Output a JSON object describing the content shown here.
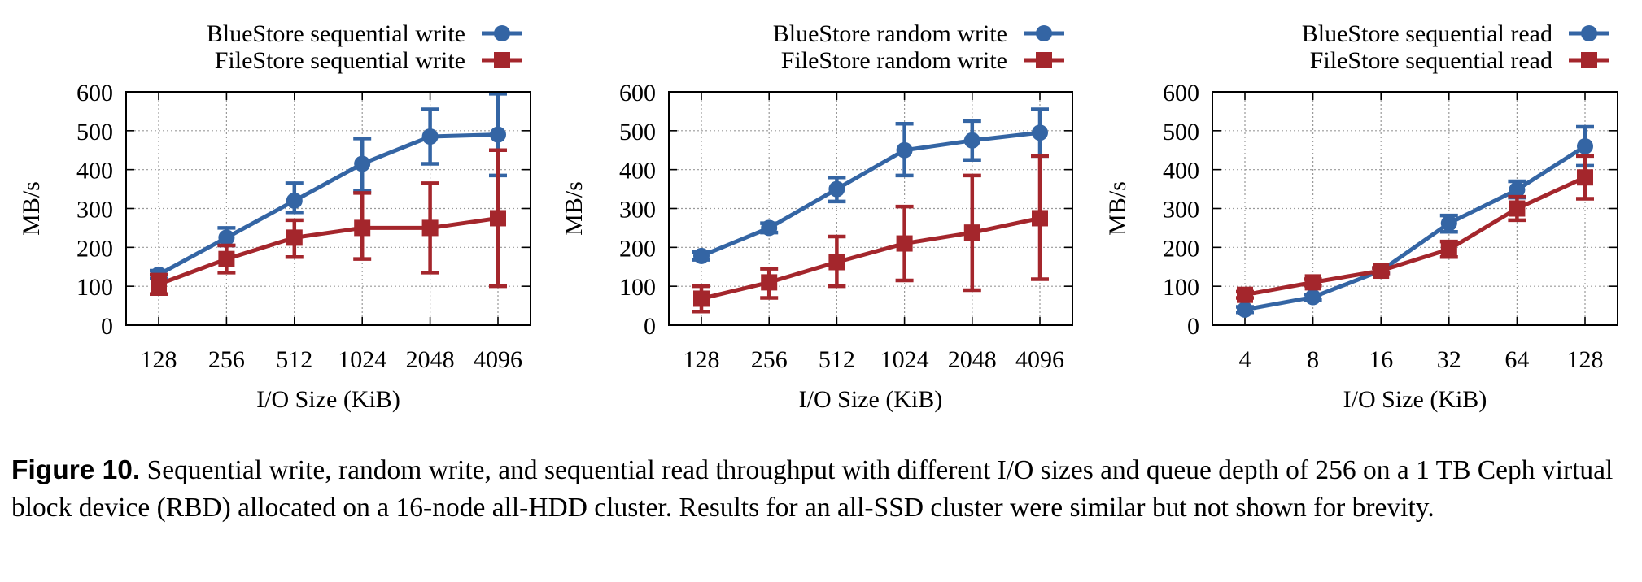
{
  "chart_data": [
    {
      "type": "line",
      "categories": [
        "128",
        "256",
        "512",
        "1024",
        "2048",
        "4096"
      ],
      "xlabel": "I/O Size (KiB)",
      "ylabel": "MB/s",
      "ylim": [
        0,
        600
      ],
      "yticks": [
        "0",
        "100",
        "200",
        "300",
        "400",
        "500",
        "600"
      ],
      "grid": true,
      "error_bars": true,
      "legend_position": "top-right, above plot",
      "series": [
        {
          "name": "BlueStore sequential write",
          "color": "#3465a4",
          "marker": "circle",
          "values": [
            130,
            225,
            320,
            415,
            485,
            490
          ],
          "err_low": [
            120,
            205,
            290,
            345,
            415,
            385
          ],
          "err_high": [
            140,
            250,
            365,
            480,
            555,
            595
          ]
        },
        {
          "name": "FileStore sequential write",
          "color": "#a4262c",
          "marker": "square",
          "values": [
            105,
            170,
            225,
            250,
            250,
            275
          ],
          "err_low": [
            80,
            135,
            175,
            170,
            135,
            100
          ],
          "err_high": [
            130,
            205,
            270,
            340,
            365,
            450
          ]
        }
      ]
    },
    {
      "type": "line",
      "categories": [
        "128",
        "256",
        "512",
        "1024",
        "2048",
        "4096"
      ],
      "xlabel": "I/O Size (KiB)",
      "ylabel": "MB/s",
      "ylim": [
        0,
        600
      ],
      "yticks": [
        "0",
        "100",
        "200",
        "300",
        "400",
        "500",
        "600"
      ],
      "grid": true,
      "error_bars": true,
      "legend_position": "top-right, above plot",
      "series": [
        {
          "name": "BlueStore random write",
          "color": "#3465a4",
          "marker": "circle",
          "values": [
            178,
            250,
            350,
            450,
            475,
            495
          ],
          "err_low": [
            168,
            238,
            318,
            385,
            425,
            435
          ],
          "err_high": [
            188,
            262,
            380,
            518,
            525,
            555
          ]
        },
        {
          "name": "FileStore random write",
          "color": "#a4262c",
          "marker": "square",
          "values": [
            68,
            110,
            162,
            210,
            238,
            275
          ],
          "err_low": [
            35,
            70,
            100,
            115,
            90,
            118
          ],
          "err_high": [
            100,
            145,
            228,
            305,
            385,
            435
          ]
        }
      ]
    },
    {
      "type": "line",
      "categories": [
        "4",
        "8",
        "16",
        "32",
        "64",
        "128"
      ],
      "xlabel": "I/O Size (KiB)",
      "ylabel": "MB/s",
      "ylim": [
        0,
        600
      ],
      "yticks": [
        "0",
        "100",
        "200",
        "300",
        "400",
        "500",
        "600"
      ],
      "grid": true,
      "error_bars": true,
      "legend_position": "top-right, above plot",
      "series": [
        {
          "name": "BlueStore sequential read",
          "color": "#3465a4",
          "marker": "circle",
          "values": [
            40,
            72,
            140,
            262,
            348,
            460
          ],
          "err_low": [
            33,
            65,
            133,
            240,
            328,
            410
          ],
          "err_high": [
            47,
            79,
            147,
            282,
            370,
            510
          ]
        },
        {
          "name": "FileStore sequential read",
          "color": "#a4262c",
          "marker": "square",
          "values": [
            78,
            110,
            140,
            195,
            300,
            380
          ],
          "err_low": [
            70,
            102,
            133,
            175,
            270,
            325
          ],
          "err_high": [
            86,
            118,
            147,
            215,
            330,
            435
          ]
        }
      ]
    }
  ],
  "caption": {
    "label": "Figure 10.",
    "text": "Sequential write, random write, and sequential read throughput with different I/O sizes and queue depth of 256 on a 1 TB Ceph virtual block device (RBD) allocated on a 16-node all-HDD cluster. Results for an all-SSD cluster were similar but not shown for brevity."
  }
}
